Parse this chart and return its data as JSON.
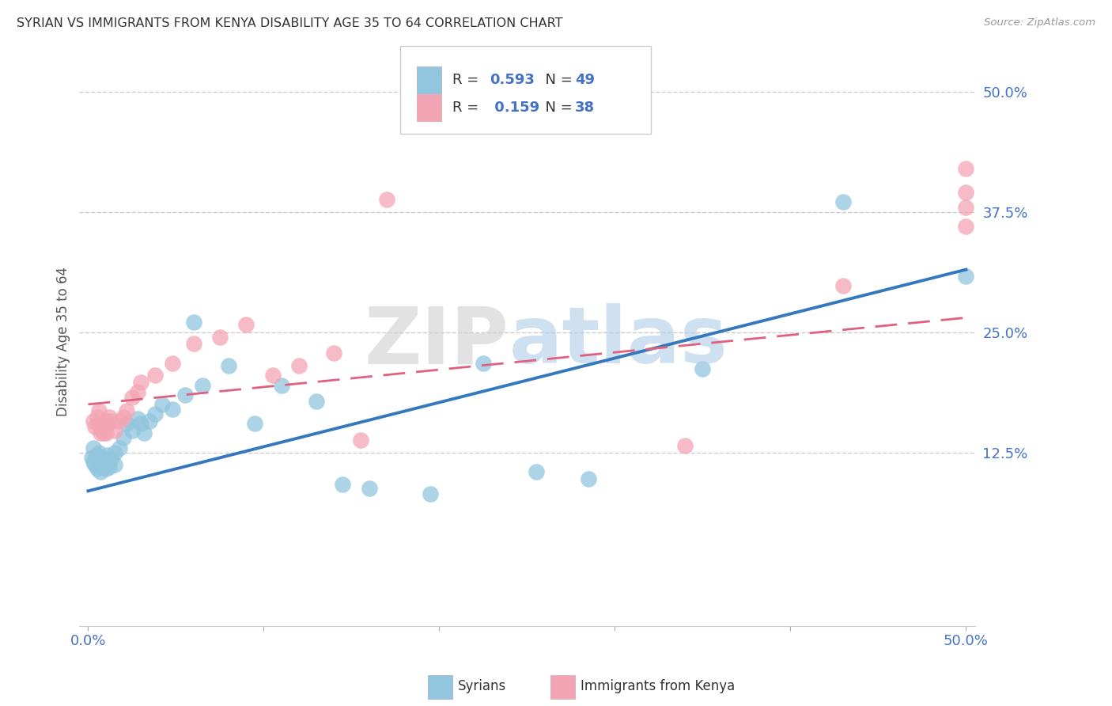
{
  "title": "SYRIAN VS IMMIGRANTS FROM KENYA DISABILITY AGE 35 TO 64 CORRELATION CHART",
  "source": "Source: ZipAtlas.com",
  "ylabel": "Disability Age 35 to 64",
  "xlim": [
    -0.005,
    0.505
  ],
  "ylim": [
    -0.055,
    0.535
  ],
  "blue_R": 0.593,
  "blue_N": 49,
  "pink_R": 0.159,
  "pink_N": 38,
  "blue_color": "#92C5DE",
  "pink_color": "#F4A5B5",
  "blue_line_color": "#3478BD",
  "pink_line_color": "#E06080",
  "background_color": "#ffffff",
  "grid_color": "#cccccc",
  "blue_slope": 0.46,
  "blue_intercept": 0.085,
  "pink_slope": 0.18,
  "pink_intercept": 0.175,
  "blue_x": [
    0.002,
    0.003,
    0.003,
    0.004,
    0.004,
    0.005,
    0.005,
    0.006,
    0.006,
    0.007,
    0.007,
    0.008,
    0.008,
    0.009,
    0.009,
    0.01,
    0.01,
    0.011,
    0.012,
    0.013,
    0.015,
    0.015,
    0.018,
    0.02,
    0.022,
    0.025,
    0.028,
    0.03,
    0.032,
    0.035,
    0.038,
    0.042,
    0.048,
    0.055,
    0.06,
    0.065,
    0.08,
    0.095,
    0.11,
    0.13,
    0.145,
    0.16,
    0.195,
    0.225,
    0.255,
    0.285,
    0.35,
    0.43,
    0.5
  ],
  "blue_y": [
    0.12,
    0.115,
    0.13,
    0.118,
    0.112,
    0.108,
    0.122,
    0.115,
    0.125,
    0.118,
    0.105,
    0.112,
    0.118,
    0.11,
    0.12,
    0.108,
    0.115,
    0.122,
    0.11,
    0.118,
    0.125,
    0.112,
    0.13,
    0.14,
    0.155,
    0.148,
    0.16,
    0.155,
    0.145,
    0.158,
    0.165,
    0.175,
    0.17,
    0.185,
    0.26,
    0.195,
    0.215,
    0.155,
    0.195,
    0.178,
    0.092,
    0.088,
    0.082,
    0.218,
    0.105,
    0.098,
    0.212,
    0.385,
    0.308
  ],
  "pink_x": [
    0.003,
    0.004,
    0.005,
    0.006,
    0.006,
    0.007,
    0.007,
    0.008,
    0.008,
    0.009,
    0.01,
    0.01,
    0.011,
    0.012,
    0.013,
    0.015,
    0.018,
    0.02,
    0.022,
    0.025,
    0.028,
    0.03,
    0.038,
    0.048,
    0.06,
    0.075,
    0.09,
    0.105,
    0.12,
    0.14,
    0.155,
    0.17,
    0.34,
    0.43,
    0.5,
    0.5,
    0.5,
    0.5
  ],
  "pink_y": [
    0.158,
    0.152,
    0.162,
    0.168,
    0.155,
    0.15,
    0.145,
    0.155,
    0.148,
    0.145,
    0.158,
    0.145,
    0.155,
    0.162,
    0.158,
    0.148,
    0.158,
    0.162,
    0.168,
    0.182,
    0.188,
    0.198,
    0.205,
    0.218,
    0.238,
    0.245,
    0.258,
    0.205,
    0.215,
    0.228,
    0.138,
    0.388,
    0.132,
    0.298,
    0.42,
    0.395,
    0.36,
    0.38
  ],
  "bottom_legend_syrians": "Syrians",
  "bottom_legend_kenya": "Immigrants from Kenya"
}
